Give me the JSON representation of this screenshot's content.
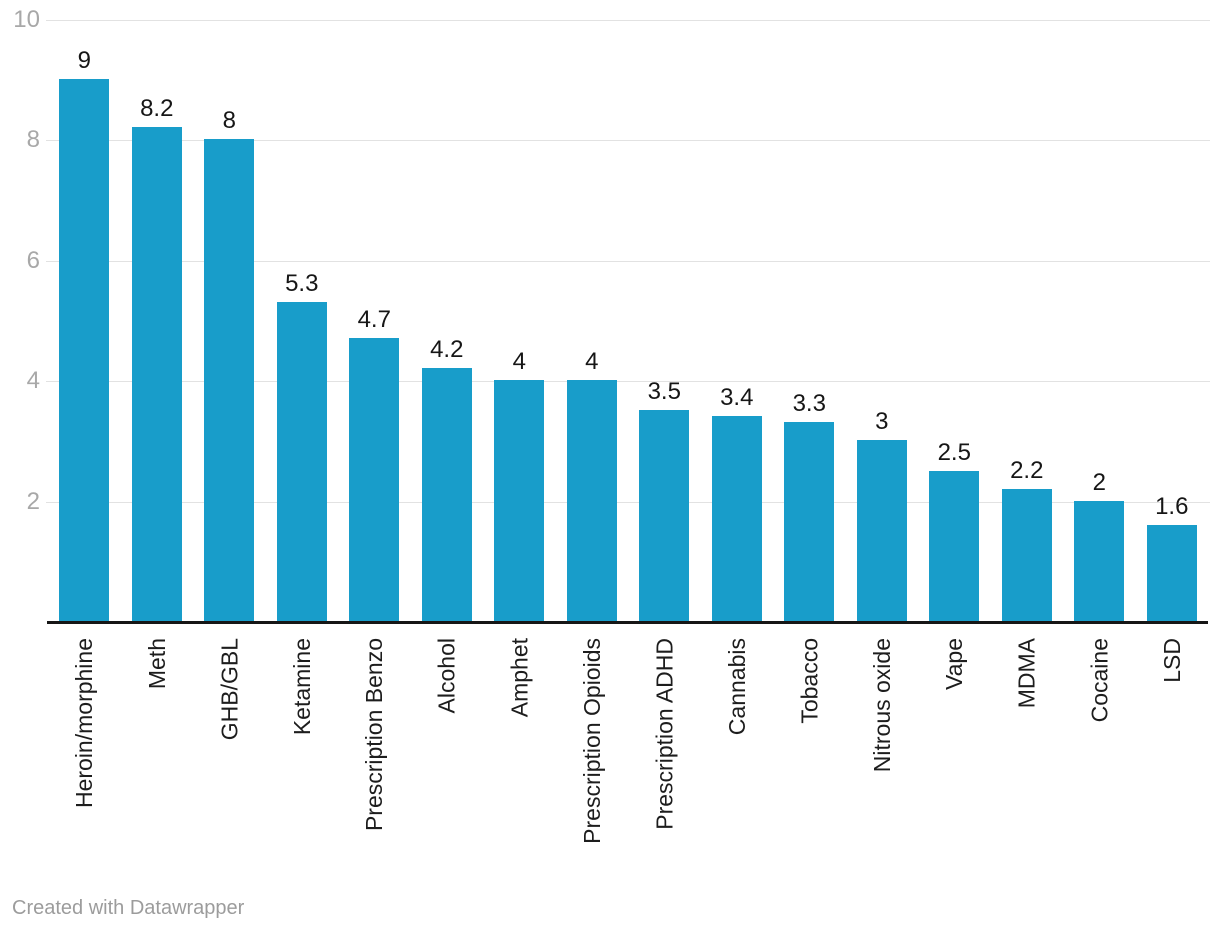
{
  "chart_data": {
    "type": "bar",
    "categories": [
      "Heroin/morphine",
      "Meth",
      "GHB/GBL",
      "Ketamine",
      "Prescription Benzo",
      "Alcohol",
      "Amphet",
      "Prescription Opioids",
      "Prescription ADHD",
      "Cannabis",
      "Tobacco",
      "Nitrous oxide",
      "Vape",
      "MDMA",
      "Cocaine",
      "LSD"
    ],
    "values": [
      9,
      8.2,
      8,
      5.3,
      4.7,
      4.2,
      4,
      4,
      3.5,
      3.4,
      3.3,
      3,
      2.5,
      2.2,
      2,
      1.6
    ],
    "value_labels": [
      "9",
      "8.2",
      "8",
      "5.3",
      "4.7",
      "4.2",
      "4",
      "4",
      "3.5",
      "3.4",
      "3.3",
      "3",
      "2.5",
      "2.2",
      "2",
      "1.6"
    ],
    "title": "",
    "xlabel": "",
    "ylabel": "",
    "ylim": [
      0,
      10
    ],
    "yticks": [
      2,
      4,
      6,
      8,
      10
    ],
    "ytick_labels": [
      "2",
      "4",
      "6",
      "8",
      "10"
    ],
    "grid": true,
    "legend": null,
    "bar_color": "#189dca",
    "x_label_rotation": -90
  },
  "footer": {
    "attribution": "Created with Datawrapper"
  },
  "colors": {
    "bar": "#189dca",
    "gridline": "#e2e2e2",
    "axis_line": "#161616",
    "tick_label": "#a8a8a8",
    "category_label": "#1d1d1d",
    "value_label": "#161616",
    "footer_text": "#9c9c9c",
    "background": "#ffffff"
  }
}
